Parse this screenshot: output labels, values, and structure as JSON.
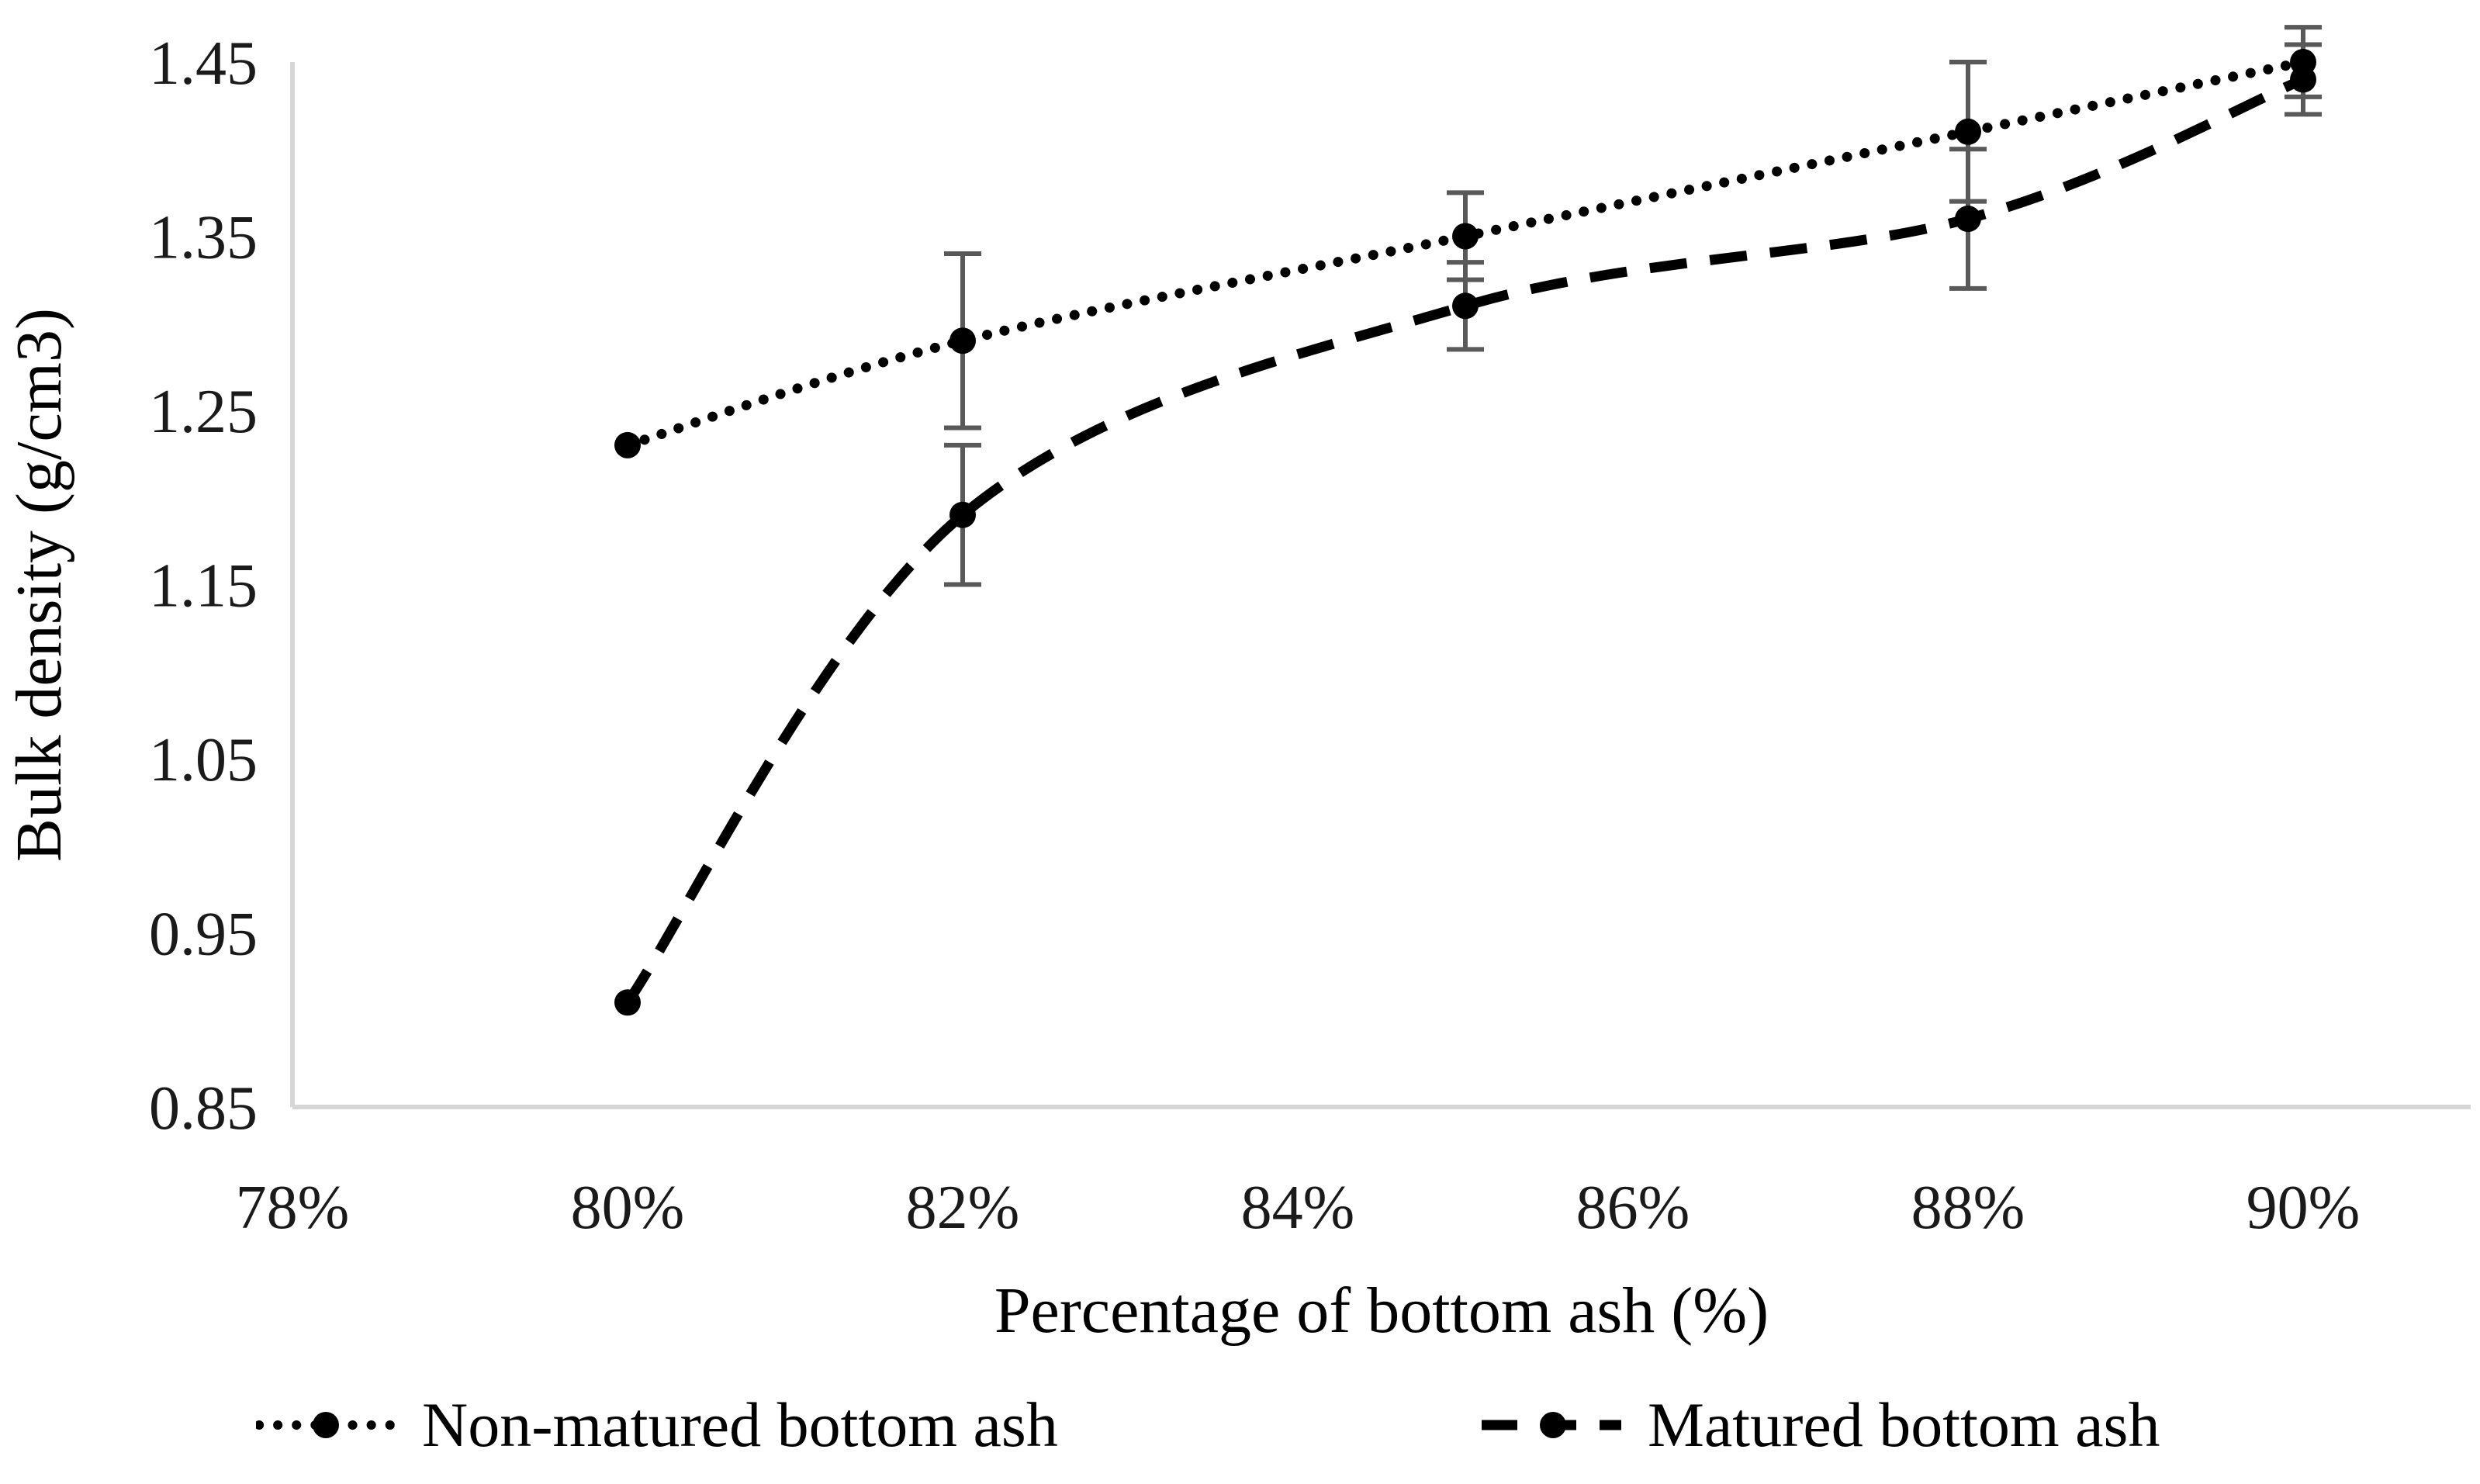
{
  "chart_data": {
    "type": "line",
    "title": "",
    "xlabel": "Percentage of bottom ash (%)",
    "ylabel": "Bulk density (g/cm3)",
    "x_ticks": [
      "78%",
      "80%",
      "82%",
      "84%",
      "86%",
      "88%",
      "90%"
    ],
    "x_tick_values": [
      78,
      80,
      82,
      84,
      86,
      88,
      90
    ],
    "xlim": [
      78,
      91
    ],
    "y_ticks": [
      "1.45",
      "1.35",
      "1.25",
      "1.15",
      "1.05",
      "0.95",
      "0.85"
    ],
    "y_tick_values": [
      1.45,
      1.35,
      1.25,
      1.15,
      1.05,
      0.95,
      0.85
    ],
    "ylim": [
      0.85,
      1.45
    ],
    "grid": false,
    "legend_position": "bottom",
    "x": [
      80,
      82,
      85,
      88,
      90
    ],
    "series": [
      {
        "name": "Non-matured bottom ash",
        "style": "dotted",
        "marker": "circle",
        "values": [
          1.23,
          1.29,
          1.35,
          1.41,
          1.45
        ],
        "error": [
          0,
          0.05,
          0.025,
          0.04,
          0.02
        ]
      },
      {
        "name": "Matured bottom ash",
        "style": "dashed",
        "marker": "circle",
        "values": [
          0.91,
          1.19,
          1.31,
          1.36,
          1.44
        ],
        "error": [
          0,
          0.04,
          0.025,
          0.04,
          0.02
        ]
      }
    ],
    "colors": {
      "line": "#000000",
      "marker": "#000000",
      "axis": "#d6d6d6",
      "error_bar": "#595959",
      "text": "#000000",
      "background": "#ffffff"
    }
  }
}
